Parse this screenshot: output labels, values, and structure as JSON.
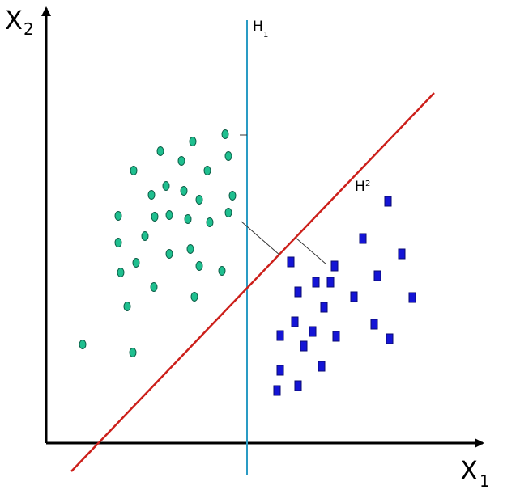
{
  "labels": {
    "x_axis": "X",
    "x_axis_sub": "1",
    "y_axis": "X",
    "y_axis_sub": "2",
    "h1": "H",
    "h1_sub": "1",
    "h2": "H",
    "h2_sub": "2"
  },
  "colors": {
    "axis": "#000000",
    "h1_line": "#2a9bc4",
    "h2_line": "#cc1f1a",
    "class_a_fill": "#1fbf8f",
    "class_a_stroke": "#0b5c45",
    "class_b_fill": "#1414d6",
    "class_b_stroke": "#0a0a70",
    "margin_line": "#333333"
  },
  "shapes": {
    "class_a": "ellipse",
    "class_b": "square"
  }
}
